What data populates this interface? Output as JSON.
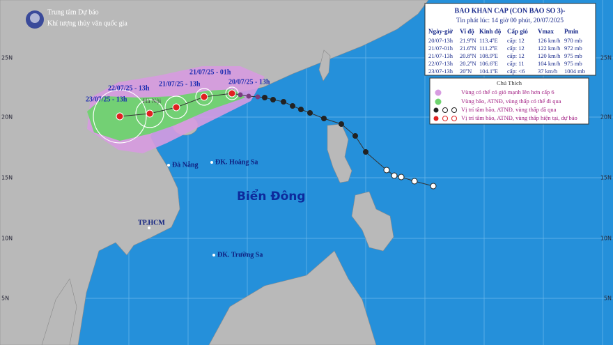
{
  "header": {
    "agency": "Trung tâm Dự báo",
    "agency_sub": "Khí tượng thủy văn quốc gia"
  },
  "bulletin": {
    "title": "BAO KHAN CAP (CON BAO SO 3)-",
    "issued": "Tin phát lúc: 14 giờ 00 phút, 20/07/2025",
    "columns": [
      "Ngày-giờ",
      "Vĩ độ",
      "Kinh độ",
      "Cấp gió",
      "Vmax",
      "Pmin"
    ],
    "rows": [
      [
        "20/07-13h",
        "21.9ºN",
        "113.4ºE",
        "cấp: 12",
        "126 km/h",
        "970 mb"
      ],
      [
        "21/07-01h",
        "21.6ºN",
        "111.2ºE",
        "cấp: 12",
        "122 km/h",
        "972 mb"
      ],
      [
        "21/07-13h",
        "20.8ºN",
        "108.9ºE",
        "cấp: 12",
        "120 km/h",
        "975 mb"
      ],
      [
        "22/07-13h",
        "20.2ºN",
        "106.6ºE",
        "cấp: 11",
        "104 km/h",
        "975 mb"
      ],
      [
        "23/07-13h",
        "20ºN",
        "104.1ºE",
        "cấp: <6",
        "37 km/h",
        "1004 mb"
      ]
    ]
  },
  "legend": {
    "title": "Chú Thích",
    "items": [
      "Vùng có thể có gió mạnh lên hơn cấp 6",
      "Vùng bão, ATNĐ, vùng thấp có thể đi qua",
      "Vị trí tâm bão, ATNĐ, vùng thấp đã qua",
      "Vị trí tâm bão, ATNĐ, vùng thấp hiện tại, dự báo"
    ]
  },
  "map": {
    "sea": "Biển Đông",
    "places": [
      "Đà Nẵng",
      "ĐK. Hoàng Sa",
      "TP.HCM",
      "ĐK. Trường Sa",
      "Hà Nội"
    ],
    "track_labels": [
      "23/07/25 - 13h",
      "22/07/25 - 13h",
      "21/07/25 - 13h",
      "21/07/25 - 01h",
      "20/07/25 - 13h"
    ],
    "lat_labels": [
      "25N",
      "20N",
      "15N",
      "10N",
      "5N"
    ]
  }
}
